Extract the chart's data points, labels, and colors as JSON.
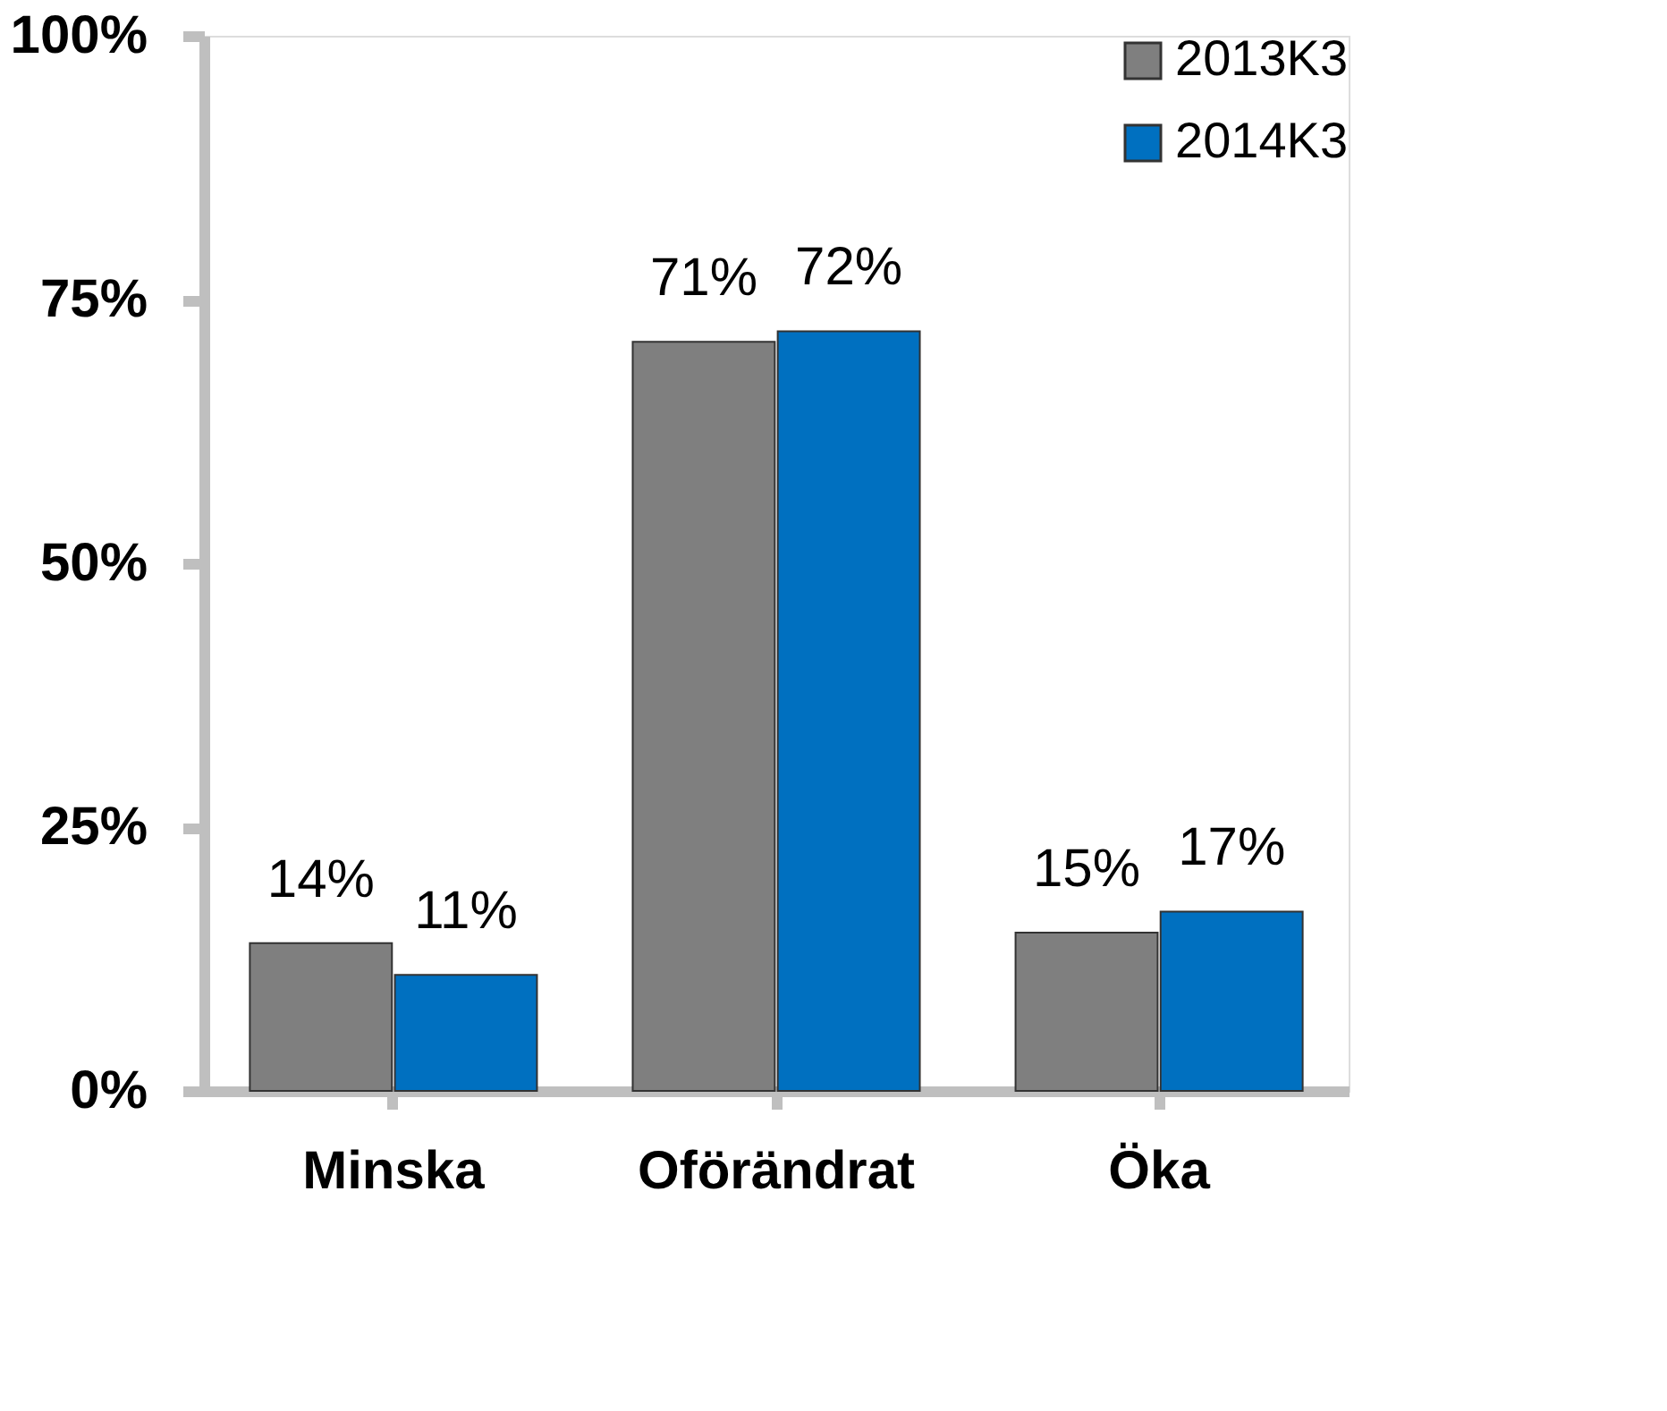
{
  "chart_data": {
    "type": "bar",
    "categories": [
      "Minska",
      "Oförändrat",
      "Öka"
    ],
    "series": [
      {
        "name": "2013K3",
        "color": "#7f7f7f",
        "values": [
          14,
          71,
          15
        ],
        "value_labels": [
          "14%",
          "71%",
          "15%"
        ]
      },
      {
        "name": "2014K3",
        "color": "#0070c0",
        "values": [
          11,
          72,
          17
        ],
        "value_labels": [
          "11%",
          "72%",
          "17%"
        ]
      }
    ],
    "ylim": [
      0,
      100
    ],
    "yticks": [
      {
        "value": 0,
        "label": "0%"
      },
      {
        "value": 25,
        "label": "25%"
      },
      {
        "value": 50,
        "label": "50%"
      },
      {
        "value": 75,
        "label": "75%"
      },
      {
        "value": 100,
        "label": "100%"
      }
    ],
    "grid": false,
    "legend": "top right"
  }
}
